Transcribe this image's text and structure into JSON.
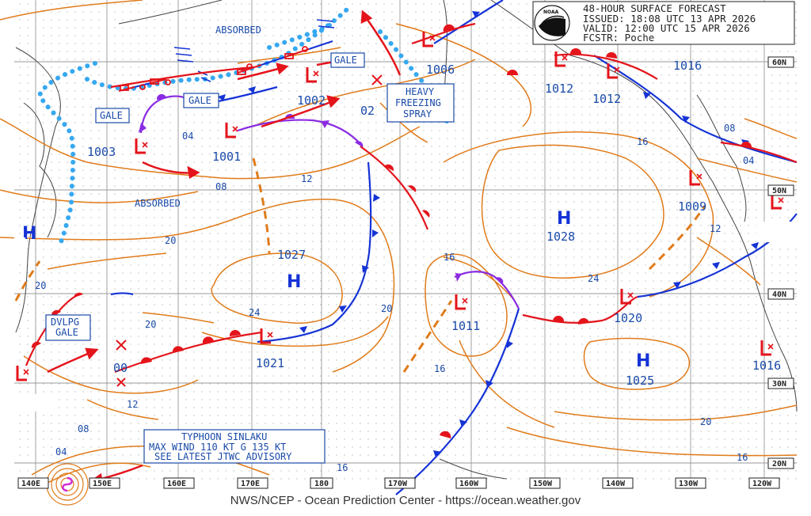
{
  "header": {
    "title": "48-HOUR SURFACE FORECAST",
    "issued": "ISSUED: 18:08 UTC 13 APR 2026",
    "valid": "VALID:  12:00 UTC 15 APR 2026",
    "forecaster": "FCSTR:  Poche"
  },
  "logo": {
    "text": "NOAA"
  },
  "footer": {
    "credit": "NWS/NCEP - Ocean Prediction Center - https://ocean.weather.gov"
  },
  "lon_labels": [
    "140E",
    "150E",
    "160E",
    "170E",
    "180",
    "170W",
    "160W",
    "150W",
    "140W",
    "130W",
    "120W"
  ],
  "lat_labels": [
    "60N",
    "50N",
    "40N",
    "30N",
    "20N"
  ],
  "pressure_centers": [
    {
      "type": "L",
      "value": "1003"
    },
    {
      "type": "L",
      "value": "1001"
    },
    {
      "type": "L",
      "value": "1002"
    },
    {
      "type": "L",
      "value": "1006"
    },
    {
      "type": "L",
      "value": "1012"
    },
    {
      "type": "L",
      "value": "1012"
    },
    {
      "type": "H",
      "value": "1016"
    },
    {
      "type": "L",
      "value": "1009"
    },
    {
      "type": "H",
      "value": "1028"
    },
    {
      "type": "H",
      "value": "1027"
    },
    {
      "type": "L",
      "value": "1011"
    },
    {
      "type": "L",
      "value": "1020"
    },
    {
      "type": "H",
      "value": "1025"
    },
    {
      "type": "L",
      "value": "1016"
    },
    {
      "type": "L",
      "value": "1021"
    },
    {
      "type": "L",
      "value": "02"
    },
    {
      "type": "L",
      "value": "00"
    }
  ],
  "isobar_labels": [
    "04",
    "08",
    "12",
    "16",
    "20",
    "24",
    "08",
    "04",
    "16",
    "12",
    "20",
    "16",
    "20",
    "24",
    "20",
    "12",
    "16",
    "20",
    "16",
    "08",
    "04"
  ],
  "warnings": {
    "absorbed_top": "ABSORBED",
    "absorbed_mid": "ABSORBED",
    "gale_1": "GALE",
    "gale_2": "GALE",
    "gale_3": "GALE",
    "freezing": [
      "HEAVY",
      "FREEZING",
      "SPRAY"
    ],
    "dvlpg": [
      "DVLPG",
      "GALE"
    ],
    "typhoon": [
      "TYPHOON SINLAKU",
      "MAX WIND 110 KT G 135 KT",
      "SEE LATEST JTWC ADVISORY"
    ]
  },
  "colors": {
    "isobar": "#e07b1a",
    "warm_front": "#e4141b",
    "cold_front": "#1533d6",
    "occluded_front": "#8a2be2",
    "ice_edge": "#36a8f0",
    "label_blue": "#1a4aa8",
    "grid": "#9a9a9a"
  }
}
